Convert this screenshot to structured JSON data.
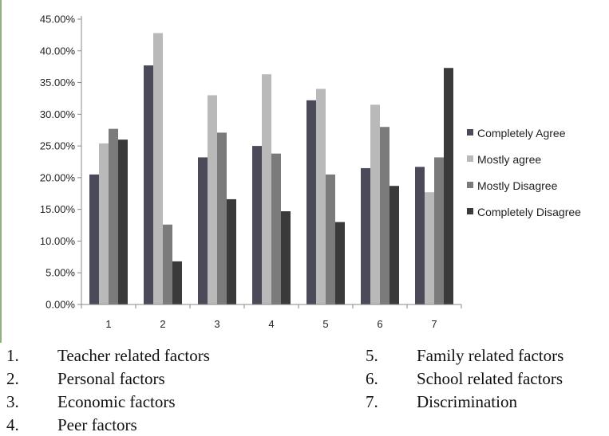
{
  "chart_data": {
    "type": "bar",
    "categories": [
      "1",
      "2",
      "3",
      "4",
      "5",
      "6",
      "7"
    ],
    "series": [
      {
        "name": "Completely Agree",
        "color": "#4a4a58",
        "values": [
          20.5,
          37.7,
          23.2,
          25.0,
          32.2,
          21.5,
          21.7
        ]
      },
      {
        "name": "Mostly agree",
        "color": "#b9b9b9",
        "values": [
          25.4,
          42.8,
          33.0,
          36.3,
          34.0,
          31.5,
          17.7
        ]
      },
      {
        "name": "Mostly Disagree",
        "color": "#7b7b7b",
        "values": [
          27.7,
          12.6,
          27.1,
          23.8,
          20.5,
          28.0,
          23.2
        ]
      },
      {
        "name": "Completely Disagree",
        "color": "#3a3a3a",
        "values": [
          26.0,
          6.8,
          16.6,
          14.7,
          13.0,
          18.7,
          37.3
        ]
      }
    ],
    "yticks": [
      "0.00%",
      "5.00%",
      "10.00%",
      "15.00%",
      "20.00%",
      "25.00%",
      "30.00%",
      "35.00%",
      "40.00%",
      "45.00%"
    ],
    "ylim": [
      0,
      45
    ],
    "grid": false,
    "legend_position": "right"
  },
  "factors": [
    {
      "num": "1.",
      "label": "Teacher related factors"
    },
    {
      "num": "2.",
      "label": "Personal factors"
    },
    {
      "num": "3.",
      "label": "Economic factors"
    },
    {
      "num": "4.",
      "label": "Peer factors"
    },
    {
      "num": "5.",
      "label": "Family related factors"
    },
    {
      "num": "6.",
      "label": "School related factors"
    },
    {
      "num": "7.",
      "label": "Discrimination"
    }
  ]
}
